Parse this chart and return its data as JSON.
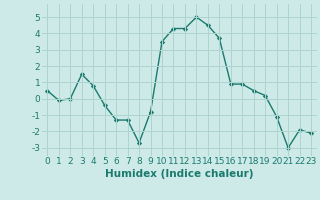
{
  "x": [
    0,
    1,
    2,
    3,
    4,
    5,
    6,
    7,
    8,
    9,
    10,
    11,
    12,
    13,
    14,
    15,
    16,
    17,
    18,
    19,
    20,
    21,
    22,
    23
  ],
  "y": [
    0.5,
    -0.1,
    0.0,
    1.5,
    0.8,
    -0.4,
    -1.3,
    -1.3,
    -2.7,
    -0.8,
    3.5,
    4.3,
    4.3,
    5.0,
    4.5,
    3.7,
    0.9,
    0.9,
    0.5,
    0.2,
    -1.1,
    -3.0,
    -1.9,
    -2.1
  ],
  "line_color": "#1a7a6e",
  "marker": "D",
  "marker_size": 2.2,
  "bg_color": "#ceeae8",
  "grid_color": "#aed4d0",
  "xlabel": "Humidex (Indice chaleur)",
  "ylim": [
    -3.5,
    5.8
  ],
  "xlim": [
    -0.5,
    23.5
  ],
  "yticks": [
    -3,
    -2,
    -1,
    0,
    1,
    2,
    3,
    4,
    5
  ],
  "xticks": [
    0,
    1,
    2,
    3,
    4,
    5,
    6,
    7,
    8,
    9,
    10,
    11,
    12,
    13,
    14,
    15,
    16,
    17,
    18,
    19,
    20,
    21,
    22,
    23
  ],
  "tick_label_fontsize": 6.5,
  "xlabel_fontsize": 7.5,
  "line_width": 1.0
}
